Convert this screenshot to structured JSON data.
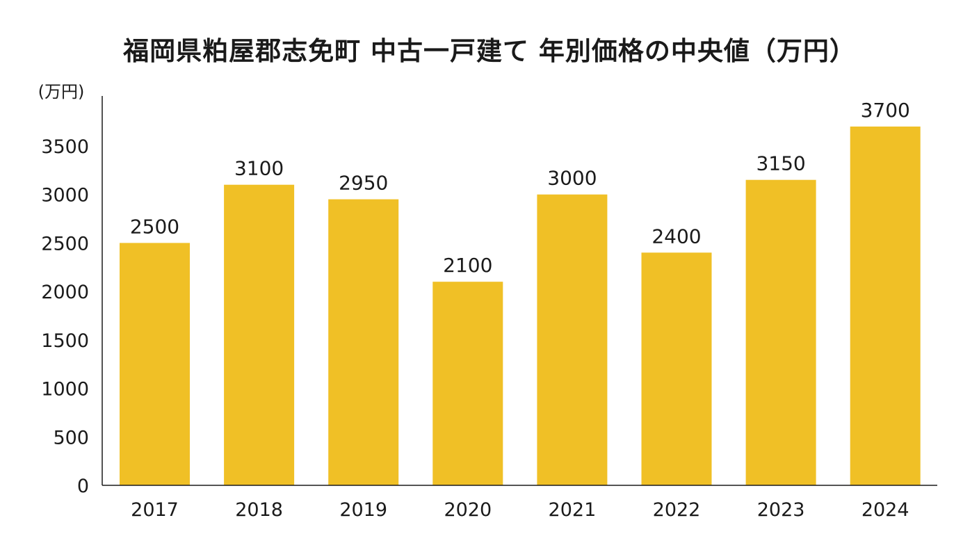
{
  "chart_data": {
    "type": "bar",
    "title": "福岡県粕屋郡志免町 中古一戸建て 年別価格の中央値（万円）",
    "ylabel": "(万円)",
    "xlabel": "",
    "categories": [
      "2017",
      "2018",
      "2019",
      "2020",
      "2021",
      "2022",
      "2023",
      "2024"
    ],
    "values": [
      2500,
      3100,
      2950,
      2100,
      3000,
      2400,
      3150,
      3700
    ],
    "data_labels": [
      "2500",
      "3100",
      "2950",
      "2100",
      "3000",
      "2400",
      "3150",
      "3700"
    ],
    "ylim": [
      0,
      4000
    ],
    "yticks": [
      0,
      500,
      1000,
      1500,
      2000,
      2500,
      3000,
      3500
    ],
    "ytick_labels": [
      "0",
      "500",
      "1000",
      "1500",
      "2000",
      "2500",
      "3000",
      "3500"
    ],
    "grid": false,
    "legend": "none",
    "colors": {
      "bar": "#F0C026",
      "axis": "#1a1a1a",
      "text": "#1a1a1a"
    }
  }
}
